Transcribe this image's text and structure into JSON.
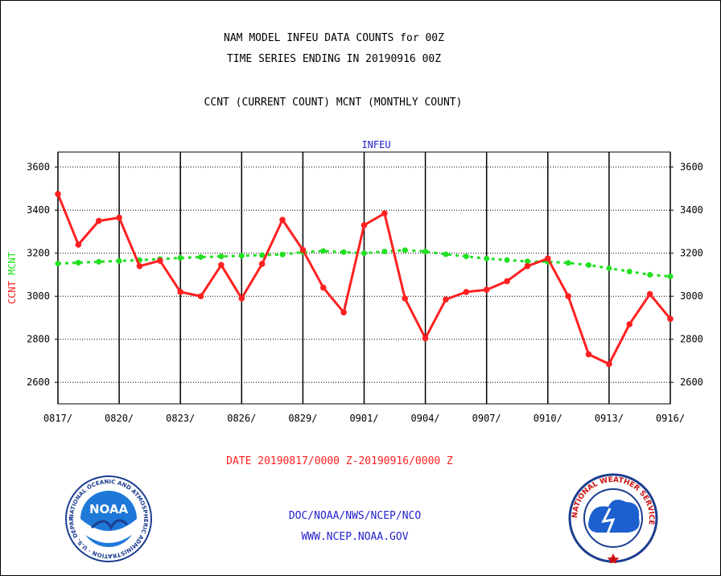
{
  "header": {
    "line1": "NAM MODEL INFEU DATA COUNTS for 00Z",
    "line2": "TIME SERIES ENDING IN 20190916 00Z",
    "line3": "CCNT (CURRENT COUNT) MCNT (MONTHLY COUNT)"
  },
  "footer": {
    "date_range": "DATE 20190817/0000 Z-20190916/0000 Z",
    "org": "DOC/NOAA/NWS/NCEP/NCO",
    "url": "WWW.NCEP.NOAA.GOV"
  },
  "logos": {
    "noaa": {
      "text": "NOAA",
      "ring_text": "NATIONAL OCEANIC AND ATMOSPHERIC ADMINISTRATION · U.S. DEPARTMENT OF COMMERCE"
    },
    "nws": {
      "ring_text": "NATIONAL WEATHER SERVICE"
    }
  },
  "colors": {
    "ccnt": "#ff2020",
    "mcnt": "#22e022",
    "title_blue": "#2222cc",
    "date_red": "#ff2020"
  },
  "chart_data": {
    "type": "line",
    "title": "INFEU",
    "ylabel_left": [
      "CCNT",
      "MCNT"
    ],
    "ylim": [
      2500,
      3670
    ],
    "yticks": [
      2600,
      2800,
      3000,
      3200,
      3400,
      3600
    ],
    "grid": true,
    "x_tick_labels": [
      "0817/",
      "0820/",
      "0823/",
      "0826/",
      "0829/",
      "0901/",
      "0904/",
      "0907/",
      "0910/",
      "0913/",
      "0916/"
    ],
    "x": [
      "0817",
      "0818",
      "0819",
      "0820",
      "0821",
      "0822",
      "0823",
      "0824",
      "0825",
      "0826",
      "0827",
      "0828",
      "0829",
      "0830",
      "0831",
      "0901",
      "0902",
      "0903",
      "0904",
      "0905",
      "0906",
      "0907",
      "0908",
      "0909",
      "0910",
      "0911",
      "0912",
      "0913",
      "0914",
      "0915",
      "0916"
    ],
    "series": [
      {
        "name": "CCNT",
        "color": "#ff2020",
        "values": [
          3475,
          3240,
          3350,
          3365,
          3140,
          3165,
          3020,
          3000,
          3145,
          2990,
          3150,
          3355,
          3215,
          3040,
          2925,
          3330,
          3385,
          2990,
          2805,
          2985,
          3020,
          3030,
          3070,
          3140,
          3175,
          3000,
          2730,
          2685,
          2870,
          3010,
          2895
        ]
      },
      {
        "name": "MCNT",
        "color": "#22e022",
        "values": [
          3152,
          3156,
          3160,
          3164,
          3168,
          3173,
          3178,
          3182,
          3185,
          3188,
          3191,
          3194,
          3205,
          3210,
          3205,
          3200,
          3208,
          3214,
          3208,
          3195,
          3185,
          3175,
          3168,
          3162,
          3160,
          3155,
          3145,
          3130,
          3115,
          3100,
          3092
        ]
      }
    ]
  }
}
